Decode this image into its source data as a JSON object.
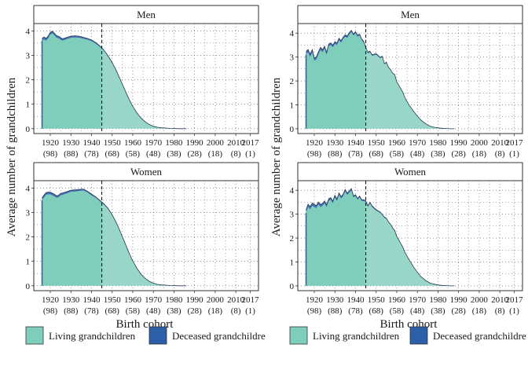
{
  "figure": {
    "ylabel": "Average number of grandchildren",
    "xlabel": "Birth cohort",
    "legend": [
      {
        "label": "Living grandchildren",
        "color": "#7fcdbb"
      },
      {
        "label": "Deceased grandchildre",
        "color": "#2c5fa8"
      }
    ],
    "colors": {
      "living": "#7fcdbb",
      "living_projected": "#98d6c8",
      "deceased": "#2c5fa8",
      "outline": "#2a3c52",
      "frame": "#333333",
      "strip_bg": "#ffffff",
      "grid": "#555555"
    }
  },
  "chart_data": [
    {
      "type": "area",
      "column": "left",
      "panel": "Men",
      "x_tick_labels": [
        "1920",
        "1930",
        "1940",
        "1950",
        "1960",
        "1970",
        "1980",
        "1990",
        "2000",
        "2010",
        "2017"
      ],
      "x_tick_sublabels": [
        "(98)",
        "(88)",
        "(78)",
        "(68)",
        "(58)",
        "(48)",
        "(38)",
        "(28)",
        "(18)",
        "(8)",
        "(1)"
      ],
      "y_ticks": [
        0,
        1,
        2,
        3,
        4
      ],
      "xlim": [
        1912,
        2021
      ],
      "ylim": [
        -0.2,
        4.3
      ],
      "vline_x": 1945,
      "grid": "dotted",
      "living": {
        "x": [
          1916,
          1917,
          1918,
          1919,
          1920,
          1921,
          1922,
          1923,
          1924,
          1925,
          1926,
          1928,
          1930,
          1932,
          1934,
          1936,
          1938,
          1940,
          1942,
          1944,
          1946,
          1948,
          1950,
          1952,
          1954,
          1956,
          1958,
          1960,
          1962,
          1964,
          1966,
          1968,
          1970,
          1972,
          1974,
          1976,
          1978,
          1980,
          1982,
          1984,
          1986
        ],
        "y": [
          3.6,
          3.65,
          3.6,
          3.7,
          3.85,
          3.9,
          3.82,
          3.72,
          3.7,
          3.64,
          3.6,
          3.66,
          3.72,
          3.73,
          3.72,
          3.68,
          3.64,
          3.58,
          3.48,
          3.35,
          3.18,
          2.95,
          2.68,
          2.35,
          1.98,
          1.6,
          1.22,
          0.9,
          0.63,
          0.42,
          0.27,
          0.16,
          0.09,
          0.05,
          0.03,
          0.02,
          0.01,
          0.01,
          0.0,
          0.0,
          0.0
        ]
      },
      "deceased": {
        "x": [
          1916,
          1920,
          1925,
          1930,
          1935,
          1940,
          1944,
          1950,
          1960,
          1970,
          1980,
          1986
        ],
        "y": [
          0.1,
          0.09,
          0.08,
          0.07,
          0.06,
          0.05,
          0.04,
          0.03,
          0.02,
          0.01,
          0.0,
          0.0
        ]
      }
    },
    {
      "type": "area",
      "column": "right",
      "panel": "Men",
      "x_tick_labels": [
        "1920",
        "1930",
        "1940",
        "1950",
        "1960",
        "1970",
        "1980",
        "1990",
        "2000",
        "2010",
        "2017"
      ],
      "x_tick_sublabels": [
        "(98)",
        "(88)",
        "(78)",
        "(68)",
        "(58)",
        "(48)",
        "(38)",
        "(28)",
        "(18)",
        "(8)",
        "(1)"
      ],
      "y_ticks": [
        0,
        1,
        2,
        3,
        4
      ],
      "xlim": [
        1912,
        2021
      ],
      "ylim": [
        -0.2,
        4.4
      ],
      "vline_x": 1945,
      "grid": "dotted",
      "living": {
        "x": [
          1916,
          1917,
          1918,
          1919,
          1920,
          1921,
          1922,
          1923,
          1924,
          1925,
          1926,
          1927,
          1928,
          1929,
          1930,
          1931,
          1932,
          1933,
          1934,
          1935,
          1936,
          1937,
          1938,
          1939,
          1940,
          1941,
          1942,
          1943,
          1944,
          1945,
          1946,
          1947,
          1948,
          1950,
          1952,
          1953,
          1954,
          1955,
          1956,
          1957,
          1958,
          1959,
          1960,
          1961,
          1962,
          1963,
          1964,
          1966,
          1968,
          1970,
          1972,
          1974,
          1976,
          1978,
          1980,
          1982,
          1984,
          1986,
          1988
        ],
        "y": [
          3.1,
          3.2,
          3.0,
          3.2,
          2.85,
          2.9,
          3.1,
          3.3,
          3.2,
          3.35,
          3.1,
          3.45,
          3.5,
          3.4,
          3.55,
          3.5,
          3.7,
          3.6,
          3.75,
          3.85,
          3.8,
          3.95,
          4.05,
          3.9,
          4.0,
          3.85,
          3.9,
          3.7,
          3.6,
          3.35,
          3.15,
          3.2,
          3.05,
          3.1,
          2.95,
          3.0,
          2.7,
          2.75,
          2.55,
          2.45,
          2.3,
          2.25,
          1.95,
          1.8,
          1.65,
          1.5,
          1.28,
          0.98,
          0.74,
          0.52,
          0.34,
          0.2,
          0.11,
          0.06,
          0.04,
          0.02,
          0.01,
          0.0,
          0.0
        ]
      },
      "deceased": {
        "x": [
          1916,
          1920,
          1925,
          1930,
          1935,
          1940,
          1945,
          1950,
          1960,
          1970,
          1980,
          1988
        ],
        "y": [
          0.12,
          0.11,
          0.1,
          0.09,
          0.08,
          0.06,
          0.05,
          0.04,
          0.02,
          0.01,
          0.0,
          0.0
        ]
      }
    },
    {
      "type": "area",
      "column": "left",
      "panel": "Women",
      "x_tick_labels": [
        "1920",
        "1930",
        "1940",
        "1950",
        "1960",
        "1970",
        "1980",
        "1990",
        "2000",
        "2010",
        "2017"
      ],
      "x_tick_sublabels": [
        "(98)",
        "(88)",
        "(78)",
        "(68)",
        "(58)",
        "(48)",
        "(38)",
        "(28)",
        "(18)",
        "(8)",
        "(1)"
      ],
      "y_ticks": [
        0,
        1,
        2,
        3,
        4
      ],
      "xlim": [
        1912,
        2021
      ],
      "ylim": [
        -0.2,
        4.3
      ],
      "vline_x": 1945,
      "grid": "dotted",
      "living": {
        "x": [
          1916,
          1917,
          1918,
          1919,
          1920,
          1921,
          1922,
          1923,
          1924,
          1925,
          1926,
          1928,
          1930,
          1932,
          1934,
          1936,
          1938,
          1940,
          1942,
          1944,
          1946,
          1948,
          1950,
          1952,
          1954,
          1956,
          1958,
          1960,
          1962,
          1964,
          1966,
          1968,
          1970,
          1972,
          1974,
          1976,
          1978,
          1980,
          1982,
          1984,
          1986
        ],
        "y": [
          3.5,
          3.62,
          3.72,
          3.74,
          3.74,
          3.7,
          3.66,
          3.6,
          3.62,
          3.7,
          3.72,
          3.78,
          3.84,
          3.86,
          3.88,
          3.9,
          3.82,
          3.7,
          3.6,
          3.46,
          3.32,
          3.14,
          2.88,
          2.56,
          2.18,
          1.78,
          1.36,
          1.0,
          0.7,
          0.46,
          0.29,
          0.17,
          0.1,
          0.05,
          0.03,
          0.02,
          0.01,
          0.01,
          0.0,
          0.0,
          0.0
        ]
      },
      "deceased": {
        "x": [
          1916,
          1920,
          1925,
          1930,
          1935,
          1940,
          1944,
          1950,
          1960,
          1970,
          1980,
          1986
        ],
        "y": [
          0.1,
          0.09,
          0.08,
          0.07,
          0.06,
          0.05,
          0.04,
          0.03,
          0.02,
          0.01,
          0.0,
          0.0
        ]
      }
    },
    {
      "type": "area",
      "column": "right",
      "panel": "Women",
      "x_tick_labels": [
        "1920",
        "1930",
        "1940",
        "1950",
        "1960",
        "1970",
        "1980",
        "1990",
        "2000",
        "2010",
        "2017"
      ],
      "x_tick_sublabels": [
        "(98)",
        "(88)",
        "(78)",
        "(68)",
        "(58)",
        "(48)",
        "(38)",
        "(28)",
        "(18)",
        "(8)",
        "(1)"
      ],
      "y_ticks": [
        0,
        1,
        2,
        3,
        4
      ],
      "xlim": [
        1912,
        2021
      ],
      "ylim": [
        -0.2,
        4.4
      ],
      "vline_x": 1945,
      "grid": "dotted",
      "living": {
        "x": [
          1916,
          1917,
          1918,
          1919,
          1920,
          1921,
          1922,
          1923,
          1924,
          1925,
          1926,
          1927,
          1928,
          1929,
          1930,
          1931,
          1932,
          1933,
          1934,
          1935,
          1936,
          1937,
          1938,
          1939,
          1940,
          1941,
          1942,
          1943,
          1944,
          1945,
          1946,
          1947,
          1948,
          1950,
          1952,
          1953,
          1954,
          1955,
          1956,
          1957,
          1958,
          1959,
          1960,
          1961,
          1962,
          1963,
          1964,
          1966,
          1968,
          1970,
          1972,
          1974,
          1976,
          1978,
          1980,
          1982,
          1984,
          1986,
          1988
        ],
        "y": [
          3.05,
          3.3,
          3.2,
          3.35,
          3.3,
          3.25,
          3.4,
          3.3,
          3.35,
          3.45,
          3.3,
          3.55,
          3.6,
          3.45,
          3.7,
          3.55,
          3.8,
          3.65,
          3.75,
          3.95,
          3.8,
          3.9,
          4.0,
          3.7,
          3.75,
          3.6,
          3.7,
          3.55,
          3.55,
          3.5,
          3.3,
          3.45,
          3.3,
          3.15,
          3.05,
          2.95,
          2.85,
          2.8,
          2.65,
          2.55,
          2.4,
          2.3,
          2.05,
          1.9,
          1.75,
          1.6,
          1.38,
          1.08,
          0.8,
          0.56,
          0.36,
          0.22,
          0.12,
          0.07,
          0.04,
          0.02,
          0.01,
          0.0,
          0.0
        ]
      },
      "deceased": {
        "x": [
          1916,
          1920,
          1925,
          1930,
          1935,
          1940,
          1945,
          1950,
          1960,
          1970,
          1980,
          1988
        ],
        "y": [
          0.12,
          0.11,
          0.1,
          0.09,
          0.08,
          0.06,
          0.05,
          0.04,
          0.02,
          0.01,
          0.0,
          0.0
        ]
      }
    }
  ]
}
